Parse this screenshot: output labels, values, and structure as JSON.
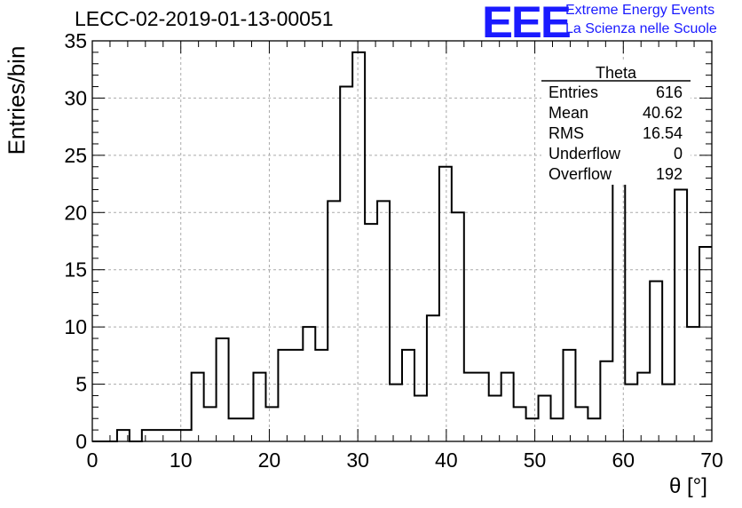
{
  "title": "LECC-02-2019-01-13-00051",
  "logo": {
    "mark": "EEE",
    "line1": "Extreme Energy Events",
    "line2": "La Scienza nelle Scuole",
    "color": "#1a1aff"
  },
  "stats_box": {
    "name": "Theta",
    "rows": [
      {
        "label": "Entries",
        "value": "616"
      },
      {
        "label": "Mean",
        "value": "40.62"
      },
      {
        "label": "RMS",
        "value": "16.54"
      },
      {
        "label": "Underflow",
        "value": "0"
      },
      {
        "label": "Overflow",
        "value": "192"
      }
    ]
  },
  "chart_data": {
    "type": "bar",
    "style": "step-histogram",
    "xlabel": "θ [°]",
    "ylabel": "Entries/bin",
    "xlim": [
      0,
      70
    ],
    "ylim": [
      0,
      35
    ],
    "x_ticks": [
      0,
      10,
      20,
      30,
      40,
      50,
      60,
      70
    ],
    "y_ticks": [
      0,
      5,
      10,
      15,
      20,
      25,
      30,
      35
    ],
    "grid": true,
    "bin_width": 1.4,
    "bin_start": 0,
    "values": [
      0,
      0,
      1,
      0,
      1,
      1,
      1,
      1,
      6,
      3,
      9,
      2,
      2,
      6,
      3,
      8,
      8,
      10,
      8,
      21,
      31,
      34,
      19,
      21,
      5,
      8,
      4,
      11,
      24,
      20,
      6,
      6,
      4,
      6,
      3,
      2,
      4,
      2,
      8,
      3,
      2,
      7,
      24,
      5,
      6,
      14,
      5,
      22,
      10,
      17
    ]
  }
}
